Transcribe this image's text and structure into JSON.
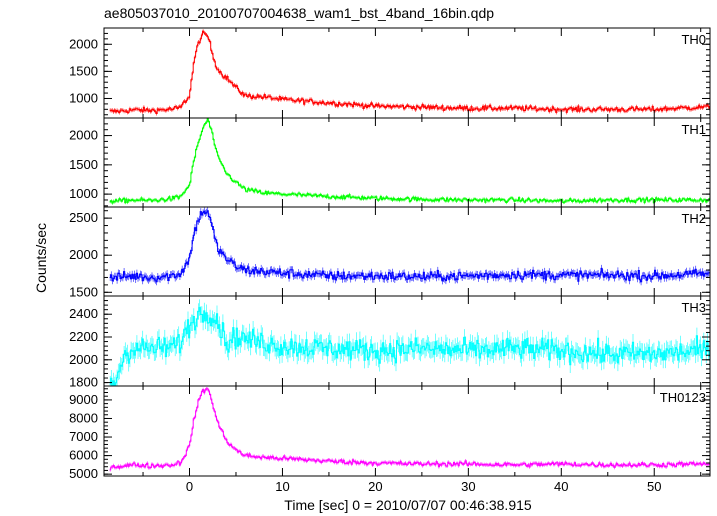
{
  "chart_data": {
    "type": "line",
    "title": "ae805037010_20100707004638_wam1_bst_4band_16bin.qdp",
    "xlabel": "Time [sec] 0 = 2010/07/07 00:46:38.915",
    "ylabel": "Counts/sec",
    "xlim": [
      -9.2,
      56
    ],
    "x_ticks": [
      0,
      10,
      20,
      30,
      40,
      50
    ],
    "panels": [
      {
        "name": "TH0",
        "color": "#ff0000",
        "ylim": [
          640,
          2300
        ],
        "y_ticks": [
          1000,
          1500,
          2000
        ],
        "baseline": 780,
        "baseline_end": 800,
        "noise": 45,
        "peak": 2200,
        "peak_time": 1.8,
        "tail_level": 1040,
        "x": [
          -8,
          -6,
          -4,
          -2,
          -1,
          0,
          0.5,
          1,
          1.5,
          2,
          2.5,
          3,
          3.5,
          4,
          5,
          6,
          8,
          10,
          15,
          20,
          25,
          30,
          35,
          40,
          45,
          50,
          55
        ],
        "y": [
          760,
          790,
          780,
          800,
          830,
          1050,
          1700,
          2050,
          2200,
          2150,
          1800,
          1550,
          1450,
          1380,
          1200,
          1050,
          1030,
          980,
          920,
          860,
          840,
          820,
          820,
          800,
          800,
          800,
          840
        ]
      },
      {
        "name": "TH1",
        "color": "#00ff00",
        "ylim": [
          780,
          2300
        ],
        "y_ticks": [
          1000,
          1500,
          2000
        ],
        "baseline": 900,
        "baseline_end": 900,
        "noise": 35,
        "peak": 2280,
        "peak_time": 2.0,
        "tail_level": 1050,
        "x": [
          -8,
          -6,
          -4,
          -2,
          -1,
          0,
          0.5,
          1,
          1.5,
          2,
          2.5,
          3,
          4,
          5,
          6,
          8,
          10,
          15,
          20,
          25,
          30,
          35,
          40,
          45,
          50,
          55
        ],
        "y": [
          880,
          900,
          890,
          920,
          950,
          1150,
          1600,
          1900,
          2150,
          2280,
          2000,
          1650,
          1350,
          1200,
          1080,
          1020,
          1000,
          960,
          930,
          910,
          900,
          900,
          880,
          900,
          900,
          900
        ]
      },
      {
        "name": "TH2",
        "color": "#0000ff",
        "ylim": [
          1450,
          2650
        ],
        "y_ticks": [
          1500,
          2000,
          2500
        ],
        "baseline": 1700,
        "baseline_end": 1750,
        "noise": 60,
        "peak": 2600,
        "peak_time": 1.8,
        "tail_level": 1800,
        "x": [
          -8,
          -6,
          -4,
          -2,
          -1,
          0,
          0.5,
          1,
          1.5,
          2,
          2.5,
          3,
          4,
          5,
          6,
          8,
          10,
          15,
          20,
          25,
          30,
          35,
          40,
          45,
          50,
          55
        ],
        "y": [
          1700,
          1720,
          1700,
          1720,
          1750,
          1950,
          2300,
          2500,
          2600,
          2580,
          2350,
          2100,
          1950,
          1850,
          1800,
          1780,
          1760,
          1720,
          1720,
          1710,
          1720,
          1740,
          1730,
          1730,
          1720,
          1750
        ]
      },
      {
        "name": "TH3",
        "color": "#00ffff",
        "ylim": [
          1770,
          2560
        ],
        "y_ticks": [
          1800,
          2000,
          2200,
          2400
        ],
        "baseline": 2100,
        "baseline_end": 2100,
        "noise": 90,
        "peak": 2420,
        "peak_time": 2.0,
        "tail_level": 2150,
        "x": [
          -8,
          -7,
          -6,
          -4,
          -2,
          -1,
          0,
          1,
          2,
          3,
          4,
          5,
          8,
          10,
          15,
          20,
          25,
          30,
          35,
          40,
          45,
          50,
          55
        ],
        "y": [
          1800,
          2050,
          2100,
          2100,
          2110,
          2150,
          2300,
          2400,
          2420,
          2350,
          2150,
          2200,
          2150,
          2120,
          2100,
          2080,
          2100,
          2080,
          2100,
          2080,
          2050,
          2050,
          2080
        ]
      },
      {
        "name": "TH0123",
        "color": "#ff00ff",
        "ylim": [
          4900,
          9750
        ],
        "y_ticks": [
          5000,
          6000,
          7000,
          8000,
          9000
        ],
        "baseline": 5450,
        "baseline_end": 5550,
        "noise": 120,
        "peak": 9600,
        "peak_time": 1.9,
        "tail_level": 5900,
        "x": [
          -8,
          -6,
          -4,
          -2,
          -1,
          0,
          0.5,
          1,
          1.5,
          2,
          2.5,
          3,
          4,
          5,
          6,
          8,
          10,
          15,
          20,
          25,
          30,
          35,
          40,
          45,
          50,
          55
        ],
        "y": [
          5400,
          5500,
          5450,
          5500,
          5600,
          6500,
          8000,
          9000,
          9500,
          9600,
          8800,
          7800,
          6800,
          6300,
          6000,
          5900,
          5850,
          5700,
          5600,
          5550,
          5550,
          5500,
          5550,
          5500,
          5500,
          5550
        ]
      }
    ]
  }
}
